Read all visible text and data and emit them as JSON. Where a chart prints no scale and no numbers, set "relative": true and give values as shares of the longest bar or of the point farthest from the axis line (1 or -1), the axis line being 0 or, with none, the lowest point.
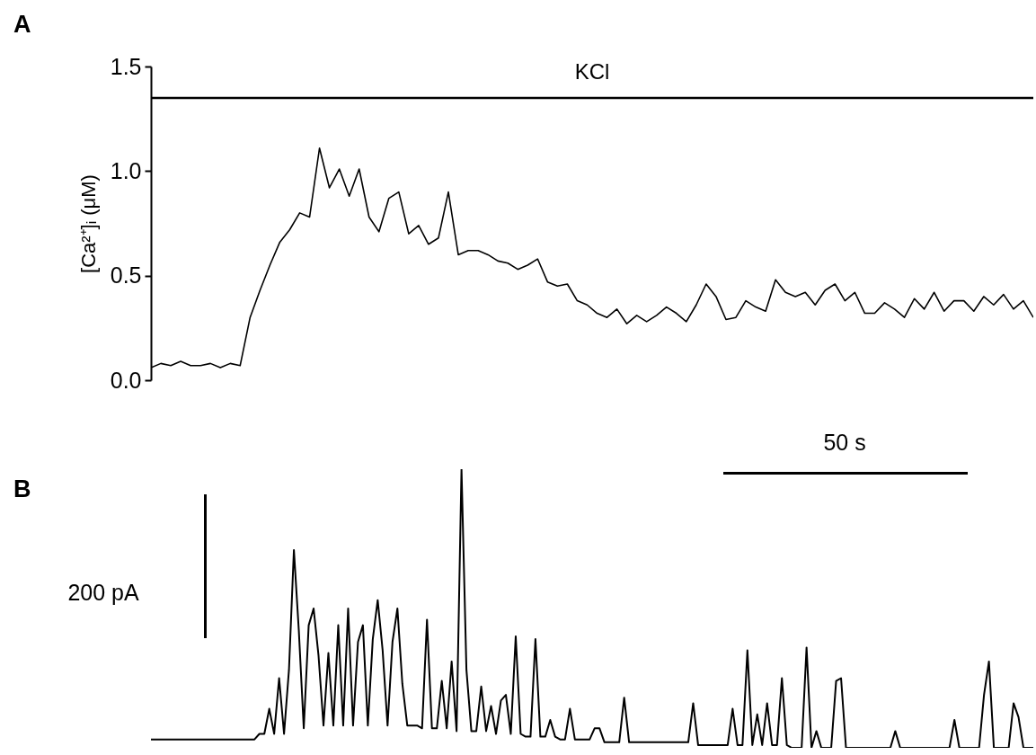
{
  "chart_data": [
    {
      "type": "line",
      "title": "A",
      "ylabel": "[Ca²⁺]ᵢ (μM)",
      "color": "#000000",
      "ylim": [
        0,
        1.5
      ],
      "tick_labels": "y",
      "yticks": [
        {
          "value": 0,
          "label": "0.0"
        },
        {
          "value": 0.5,
          "label": "0.5"
        },
        {
          "value": 1,
          "label": "1.0"
        },
        {
          "value": 1.5,
          "label": "1.5"
        }
      ],
      "ref_lines": [
        {
          "axis": "y",
          "value": 1.35,
          "label": "KCl"
        }
      ],
      "categories": [
        null,
        null,
        null,
        null,
        null,
        null,
        null,
        null,
        null,
        null,
        null,
        null,
        null,
        null,
        null,
        null,
        null,
        null,
        null,
        null,
        null,
        null,
        null,
        null,
        null,
        null,
        null,
        null,
        null,
        null,
        null,
        null,
        null,
        null,
        null,
        null,
        null,
        null,
        null,
        null,
        null,
        null,
        null,
        null,
        null,
        null,
        null,
        null,
        null,
        null,
        null,
        null,
        null,
        null,
        null,
        null,
        null,
        null,
        null,
        null,
        null,
        null,
        null,
        null,
        null,
        null,
        null,
        null,
        null,
        null,
        null,
        null,
        null,
        null,
        null,
        null,
        null,
        null,
        null,
        null,
        null,
        null,
        null,
        null,
        null,
        null,
        null,
        null,
        null,
        null
      ],
      "values": [
        0.06,
        0.08,
        0.07,
        0.09,
        0.07,
        0.07,
        0.08,
        0.06,
        0.08,
        0.07,
        0.3,
        0.43,
        0.55,
        0.66,
        0.72,
        0.8,
        0.78,
        1.11,
        0.92,
        1.01,
        0.88,
        1.01,
        0.78,
        0.71,
        0.87,
        0.9,
        0.7,
        0.74,
        0.65,
        0.68,
        0.9,
        0.6,
        0.62,
        0.62,
        0.6,
        0.57,
        0.56,
        0.53,
        0.55,
        0.58,
        0.47,
        0.45,
        0.46,
        0.38,
        0.36,
        0.32,
        0.3,
        0.34,
        0.27,
        0.31,
        0.28,
        0.31,
        0.35,
        0.32,
        0.28,
        0.36,
        0.46,
        0.4,
        0.29,
        0.3,
        0.38,
        0.35,
        0.33,
        0.48,
        0.42,
        0.4,
        0.42,
        0.36,
        0.43,
        0.46,
        0.38,
        0.42,
        0.32,
        0.32,
        0.37,
        0.34,
        0.3,
        0.39,
        0.34,
        0.42,
        0.33,
        0.38,
        0.38,
        0.33,
        0.4,
        0.36,
        0.41,
        0.34,
        0.38,
        0.3
      ]
    },
    {
      "type": "line",
      "title": "B",
      "relative": true,
      "color": "#000000",
      "tick_labels": false,
      "annotations": [
        "50 s",
        "200 pA"
      ],
      "categories": [
        null,
        null,
        null,
        null,
        null,
        null,
        null,
        null,
        null,
        null,
        null,
        null,
        null,
        null,
        null,
        null,
        null,
        null,
        null,
        null,
        null,
        null,
        null,
        null,
        null,
        null,
        null,
        null,
        null,
        null,
        null,
        null,
        null,
        null,
        null,
        null,
        null,
        null,
        null,
        null,
        null,
        null,
        null,
        null,
        null,
        null,
        null,
        null,
        null,
        null,
        null,
        null,
        null,
        null,
        null,
        null,
        null,
        null,
        null,
        null,
        null,
        null,
        null,
        null,
        null,
        null,
        null,
        null,
        null,
        null,
        null,
        null,
        null,
        null,
        null,
        null,
        null,
        null,
        null,
        null,
        null,
        null,
        null,
        null,
        null,
        null,
        null,
        null,
        null,
        null,
        null,
        null,
        null,
        null,
        null,
        null,
        null,
        null,
        null,
        null,
        null,
        null,
        null,
        null,
        null,
        null,
        null,
        null,
        null,
        null,
        null,
        null,
        null,
        null,
        null,
        null,
        null,
        null,
        null,
        null,
        null,
        null,
        null,
        null,
        null,
        null,
        null,
        null,
        null,
        null,
        null,
        null,
        null,
        null,
        null,
        null,
        null,
        null,
        null,
        null,
        null,
        null,
        null,
        null,
        null,
        null,
        null,
        null,
        null,
        null,
        null,
        null,
        null,
        null,
        null,
        null,
        null,
        null,
        null,
        null,
        null,
        null,
        null,
        null,
        null,
        null,
        null,
        null,
        null,
        null,
        null,
        null,
        null,
        null,
        null,
        null,
        null,
        null,
        null,
        null
      ],
      "values": [
        0.03,
        0.03,
        0.03,
        0.03,
        0.03,
        0.03,
        0.03,
        0.03,
        0.03,
        0.03,
        0.03,
        0.03,
        0.03,
        0.03,
        0.03,
        0.03,
        0.03,
        0.03,
        0.03,
        0.03,
        0.03,
        0.03,
        0.05,
        0.05,
        0.14,
        0.05,
        0.25,
        0.05,
        0.28,
        0.71,
        0.42,
        0.07,
        0.44,
        0.5,
        0.33,
        0.08,
        0.34,
        0.08,
        0.44,
        0.08,
        0.5,
        0.08,
        0.38,
        0.44,
        0.08,
        0.39,
        0.53,
        0.35,
        0.08,
        0.38,
        0.5,
        0.23,
        0.08,
        0.08,
        0.08,
        0.07,
        0.46,
        0.07,
        0.07,
        0.24,
        0.07,
        0.31,
        0.06,
        1,
        0.28,
        0.06,
        0.06,
        0.22,
        0.06,
        0.15,
        0.05,
        0.17,
        0.19,
        0.05,
        0.4,
        0.05,
        0.04,
        0.04,
        0.39,
        0.04,
        0.04,
        0.1,
        0.04,
        0.03,
        0.03,
        0.14,
        0.03,
        0.03,
        0.03,
        0.03,
        0.07,
        0.07,
        0.02,
        0.02,
        0.02,
        0.02,
        0.18,
        0.02,
        0.02,
        0.02,
        0.02,
        0.02,
        0.02,
        0.02,
        0.02,
        0.02,
        0.02,
        0.02,
        0.02,
        0.02,
        0.16,
        0.01,
        0.01,
        0.01,
        0.01,
        0.01,
        0.01,
        0.01,
        0.14,
        0.01,
        0.01,
        0.35,
        0.01,
        0.12,
        0.01,
        0.16,
        0.01,
        0.01,
        0.25,
        0.01,
        0,
        0,
        0,
        0.36,
        0,
        0.06,
        0,
        0,
        0,
        0.24,
        0.25,
        0,
        0,
        0,
        0,
        0,
        0,
        0,
        0,
        0,
        0,
        0.06,
        0,
        0,
        0,
        0,
        0,
        0,
        0,
        0,
        0,
        0,
        0,
        0.1,
        0,
        0,
        0,
        0,
        0,
        0.19,
        0.31,
        0,
        0,
        0,
        0,
        0.16,
        0.11,
        0,
        0,
        0
      ]
    }
  ]
}
